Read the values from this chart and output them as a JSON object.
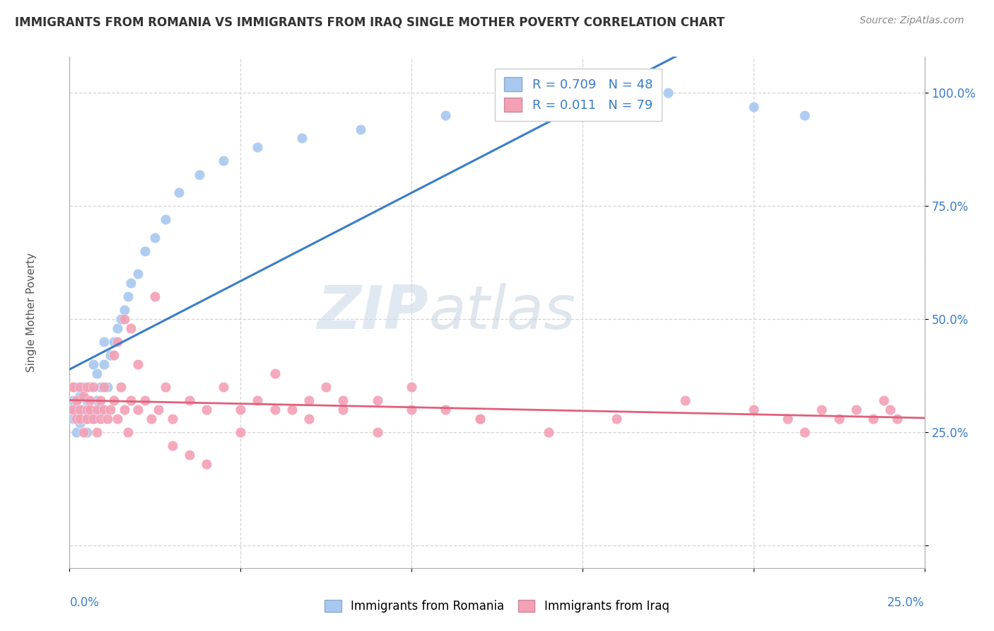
{
  "title": "IMMIGRANTS FROM ROMANIA VS IMMIGRANTS FROM IRAQ SINGLE MOTHER POVERTY CORRELATION CHART",
  "source": "Source: ZipAtlas.com",
  "ylabel": "Single Mother Poverty",
  "xlim": [
    0.0,
    0.25
  ],
  "ylim": [
    -0.05,
    1.08
  ],
  "romania_color": "#a8c8f0",
  "iraq_color": "#f4a0b5",
  "romania_R": 0.709,
  "romania_N": 48,
  "iraq_R": 0.011,
  "iraq_N": 79,
  "romania_line_color": "#3a7dc9",
  "iraq_line_color": "#e0607a",
  "watermark_zip": "ZIP",
  "watermark_atlas": "atlas",
  "romania_x": [
    0.0005,
    0.001,
    0.001,
    0.0015,
    0.002,
    0.002,
    0.002,
    0.003,
    0.003,
    0.003,
    0.004,
    0.004,
    0.005,
    0.005,
    0.005,
    0.006,
    0.006,
    0.007,
    0.007,
    0.008,
    0.008,
    0.009,
    0.009,
    0.01,
    0.01,
    0.011,
    0.012,
    0.013,
    0.014,
    0.015,
    0.016,
    0.017,
    0.018,
    0.02,
    0.022,
    0.025,
    0.028,
    0.032,
    0.038,
    0.045,
    0.055,
    0.068,
    0.085,
    0.11,
    0.145,
    0.175,
    0.2,
    0.215
  ],
  "romania_y": [
    0.3,
    0.28,
    0.32,
    0.35,
    0.25,
    0.3,
    0.32,
    0.27,
    0.33,
    0.28,
    0.3,
    0.35,
    0.25,
    0.32,
    0.28,
    0.3,
    0.35,
    0.28,
    0.4,
    0.32,
    0.38,
    0.3,
    0.35,
    0.4,
    0.45,
    0.35,
    0.42,
    0.45,
    0.48,
    0.5,
    0.52,
    0.55,
    0.58,
    0.6,
    0.65,
    0.68,
    0.72,
    0.78,
    0.82,
    0.85,
    0.88,
    0.9,
    0.92,
    0.95,
    0.98,
    1.0,
    0.97,
    0.95
  ],
  "iraq_x": [
    0.001,
    0.001,
    0.002,
    0.002,
    0.003,
    0.003,
    0.003,
    0.004,
    0.004,
    0.005,
    0.005,
    0.005,
    0.006,
    0.006,
    0.007,
    0.007,
    0.008,
    0.008,
    0.009,
    0.009,
    0.01,
    0.01,
    0.011,
    0.012,
    0.013,
    0.014,
    0.015,
    0.016,
    0.017,
    0.018,
    0.02,
    0.022,
    0.024,
    0.026,
    0.028,
    0.03,
    0.035,
    0.04,
    0.045,
    0.05,
    0.055,
    0.06,
    0.065,
    0.07,
    0.075,
    0.08,
    0.09,
    0.1,
    0.11,
    0.12,
    0.013,
    0.014,
    0.016,
    0.018,
    0.02,
    0.025,
    0.03,
    0.035,
    0.04,
    0.05,
    0.06,
    0.07,
    0.08,
    0.09,
    0.1,
    0.12,
    0.14,
    0.16,
    0.18,
    0.2,
    0.21,
    0.215,
    0.22,
    0.225,
    0.23,
    0.235,
    0.238,
    0.24,
    0.242
  ],
  "iraq_y": [
    0.3,
    0.35,
    0.28,
    0.32,
    0.3,
    0.35,
    0.28,
    0.25,
    0.33,
    0.3,
    0.28,
    0.35,
    0.32,
    0.3,
    0.28,
    0.35,
    0.3,
    0.25,
    0.32,
    0.28,
    0.3,
    0.35,
    0.28,
    0.3,
    0.32,
    0.28,
    0.35,
    0.3,
    0.25,
    0.32,
    0.3,
    0.32,
    0.28,
    0.3,
    0.35,
    0.28,
    0.32,
    0.3,
    0.35,
    0.3,
    0.32,
    0.38,
    0.3,
    0.32,
    0.35,
    0.3,
    0.32,
    0.35,
    0.3,
    0.28,
    0.42,
    0.45,
    0.5,
    0.48,
    0.4,
    0.55,
    0.22,
    0.2,
    0.18,
    0.25,
    0.3,
    0.28,
    0.32,
    0.25,
    0.3,
    0.28,
    0.25,
    0.28,
    0.32,
    0.3,
    0.28,
    0.25,
    0.3,
    0.28,
    0.3,
    0.28,
    0.32,
    0.3,
    0.28
  ],
  "ytick_positions": [
    0.0,
    0.25,
    0.5,
    0.75,
    1.0
  ],
  "ytick_labels_right": [
    "",
    "25.0%",
    "50.0%",
    "75.0%",
    "100.0%"
  ],
  "grid_color": "#cccccc",
  "bg_color": "#ffffff"
}
